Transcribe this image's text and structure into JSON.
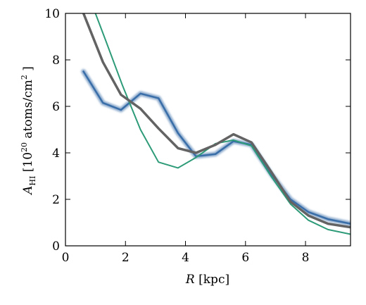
{
  "chart_data": {
    "type": "line",
    "xlabel": {
      "main": "R",
      "unit": " [kpc]"
    },
    "ylabel": {
      "main": "A",
      "sub": "HI",
      "pre": " [10",
      "sup": "20",
      "mid": " atoms/cm",
      "sup2": "2",
      "post": " ]"
    },
    "xlim": [
      0,
      9.5
    ],
    "ylim": [
      0,
      10
    ],
    "xticks": [
      0,
      2,
      4,
      6,
      8
    ],
    "yticks": [
      0,
      2,
      4,
      6,
      8,
      10
    ],
    "grid": false,
    "series": [
      {
        "color": "#3a6ea8",
        "style": "blurred",
        "points": [
          [
            0.6,
            7.5
          ],
          [
            1.25,
            6.15
          ],
          [
            1.85,
            5.85
          ],
          [
            2.5,
            6.55
          ],
          [
            3.1,
            6.35
          ],
          [
            3.75,
            4.85
          ],
          [
            4.35,
            3.85
          ],
          [
            5.0,
            3.95
          ],
          [
            5.6,
            4.5
          ],
          [
            6.2,
            4.35
          ],
          [
            6.85,
            3.1
          ],
          [
            7.5,
            2.0
          ],
          [
            8.1,
            1.45
          ],
          [
            8.75,
            1.15
          ],
          [
            9.5,
            0.95
          ]
        ]
      },
      {
        "color": "#2e9b78",
        "style": "solid",
        "points": [
          [
            1.0,
            10.0
          ],
          [
            1.35,
            8.8
          ],
          [
            1.9,
            6.9
          ],
          [
            2.5,
            5.0
          ],
          [
            3.1,
            3.6
          ],
          [
            3.75,
            3.35
          ],
          [
            4.35,
            3.8
          ],
          [
            5.0,
            4.4
          ],
          [
            5.6,
            4.55
          ],
          [
            6.2,
            4.3
          ],
          [
            6.85,
            3.0
          ],
          [
            7.5,
            1.8
          ],
          [
            8.1,
            1.1
          ],
          [
            8.75,
            0.7
          ],
          [
            9.5,
            0.5
          ]
        ]
      },
      {
        "color": "#636363",
        "style": "thick",
        "points": [
          [
            0.6,
            10.0
          ],
          [
            1.25,
            7.9
          ],
          [
            1.85,
            6.5
          ],
          [
            2.5,
            5.9
          ],
          [
            3.1,
            5.05
          ],
          [
            3.75,
            4.2
          ],
          [
            4.35,
            4.0
          ],
          [
            5.0,
            4.35
          ],
          [
            5.6,
            4.8
          ],
          [
            6.2,
            4.45
          ],
          [
            6.85,
            3.2
          ],
          [
            7.5,
            1.9
          ],
          [
            8.1,
            1.3
          ],
          [
            8.75,
            0.95
          ],
          [
            9.5,
            0.8
          ]
        ]
      }
    ]
  }
}
